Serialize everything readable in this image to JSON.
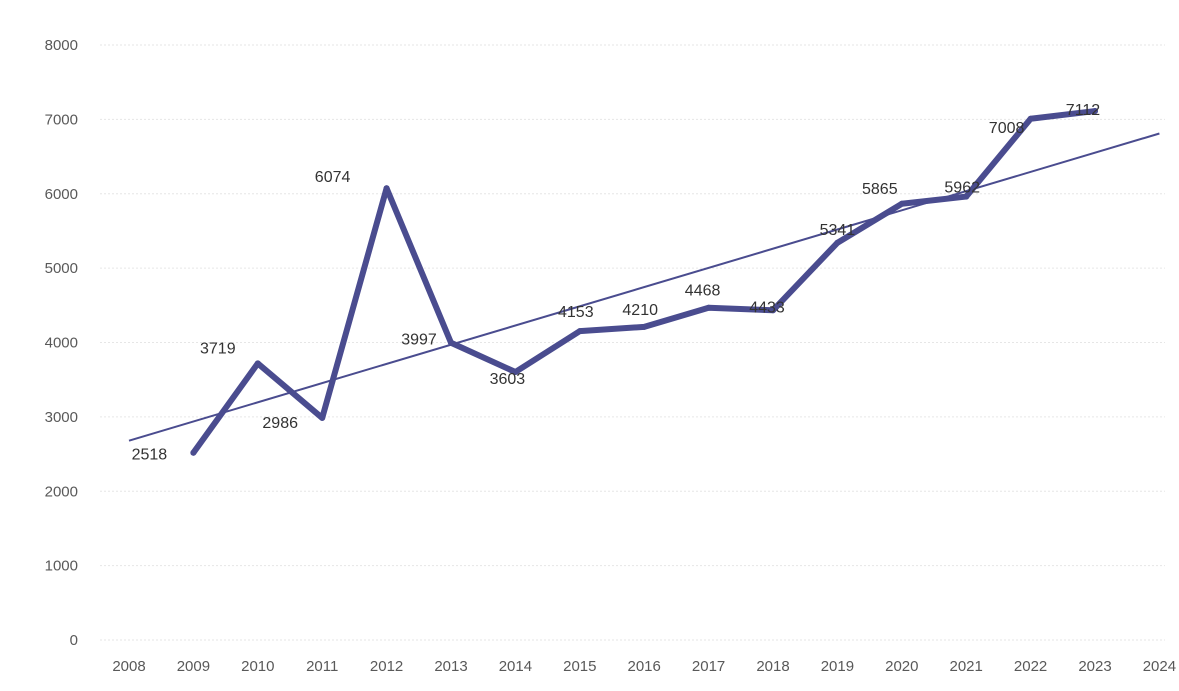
{
  "chart_data": {
    "type": "line",
    "title": "",
    "xlabel": "",
    "ylabel": "",
    "x_categories": [
      "2008",
      "2009",
      "2010",
      "2011",
      "2012",
      "2013",
      "2014",
      "2015",
      "2016",
      "2017",
      "2018",
      "2019",
      "2020",
      "2021",
      "2022",
      "2023",
      "2024"
    ],
    "y_ticks": [
      0,
      1000,
      2000,
      3000,
      4000,
      5000,
      6000,
      7000,
      8000
    ],
    "ylim": [
      0,
      8000
    ],
    "grid": true,
    "legend": "none",
    "series": [
      {
        "x": [
          "2009",
          "2010",
          "2011",
          "2012",
          "2013",
          "2014",
          "2015",
          "2016",
          "2017",
          "2018",
          "2019",
          "2020",
          "2021",
          "2022",
          "2023"
        ],
        "values": [
          2518,
          3719,
          2986,
          6074,
          3997,
          3603,
          4153,
          4210,
          4468,
          4433,
          5341,
          5865,
          5962,
          7008,
          7112
        ],
        "data_labels": [
          "2518",
          "3719",
          "2986",
          "6074",
          "3997",
          "3603",
          "4153",
          "4210",
          "4468",
          "4433",
          "5341",
          "5865",
          "5962",
          "7008",
          "7112"
        ],
        "color": "#4a4c8f"
      }
    ],
    "trendline": {
      "type": "linear",
      "x": [
        "2008",
        "2024"
      ],
      "values": [
        2680,
        6810
      ],
      "color": "#4a4c8f"
    }
  }
}
